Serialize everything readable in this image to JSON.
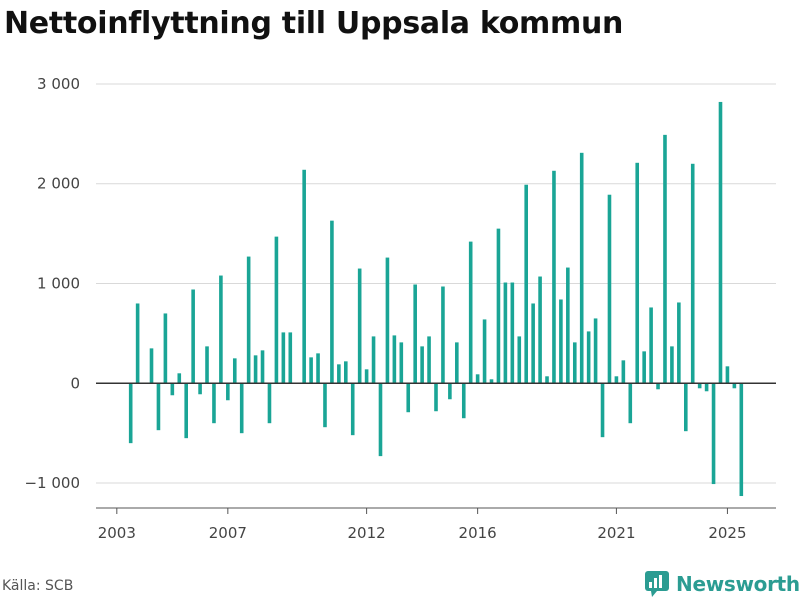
{
  "header": {
    "title": "Nettoinflyttning till Uppsala kommun"
  },
  "footer": {
    "source": "Källa: SCB",
    "brand": "Newsworthy"
  },
  "icons": {
    "brand_logo": "newsworthy-logo-icon"
  },
  "colors": {
    "bar": "#1aa596",
    "baseline": "#333333",
    "grid": "#d9d9d9",
    "brand": "#2b9c92"
  },
  "chart_data": {
    "type": "bar",
    "title": "Nettoinflyttning till Uppsala kommun",
    "xlabel": "",
    "ylabel": "",
    "ylim": [
      -1250,
      3100
    ],
    "xlim": [
      2002.25,
      2026.75
    ],
    "grid": true,
    "y_ticks": [
      {
        "value": -1000,
        "label": "−1 000"
      },
      {
        "value": 0,
        "label": "0"
      },
      {
        "value": 1000,
        "label": "1 000"
      },
      {
        "value": 2000,
        "label": "2 000"
      },
      {
        "value": 3000,
        "label": "3 000"
      }
    ],
    "x_ticks": [
      {
        "value": 2003.0,
        "label": "2003"
      },
      {
        "value": 2007.0,
        "label": "2007"
      },
      {
        "value": 2012.0,
        "label": "2012"
      },
      {
        "value": 2016.0,
        "label": "2016"
      },
      {
        "value": 2021.0,
        "label": "2021"
      },
      {
        "value": 2025.0,
        "label": "2025"
      }
    ],
    "x": [
      2003.5,
      2003.75,
      2004.0,
      2004.25,
      2004.5,
      2004.75,
      2005.0,
      2005.25,
      2005.5,
      2005.75,
      2006.0,
      2006.25,
      2006.5,
      2006.75,
      2007.0,
      2007.25,
      2007.5,
      2007.75,
      2008.0,
      2008.25,
      2008.5,
      2008.75,
      2009.0,
      2009.25,
      2009.5,
      2009.75,
      2010.0,
      2010.25,
      2010.5,
      2010.75,
      2011.0,
      2011.25,
      2011.5,
      2011.75,
      2012.0,
      2012.25,
      2012.5,
      2012.75,
      2013.0,
      2013.25,
      2013.5,
      2013.75,
      2014.0,
      2014.25,
      2014.5,
      2014.75,
      2015.0,
      2015.25,
      2015.5,
      2015.75,
      2016.0,
      2016.25,
      2016.5,
      2016.75,
      2017.0,
      2017.25,
      2017.5,
      2017.75,
      2018.0,
      2018.25,
      2018.5,
      2018.75,
      2019.0,
      2019.25,
      2019.5,
      2019.75,
      2020.0,
      2020.25,
      2020.5,
      2020.75,
      2021.0,
      2021.25,
      2021.5,
      2021.75,
      2022.0,
      2022.25,
      2022.5,
      2022.75,
      2023.0,
      2023.25,
      2023.5,
      2023.75,
      2024.0,
      2024.25,
      2024.5,
      2024.75,
      2025.0,
      2025.25,
      2025.5
    ],
    "values": [
      -600,
      800,
      0,
      350,
      -470,
      700,
      -120,
      100,
      -550,
      940,
      -110,
      370,
      -400,
      1080,
      -170,
      250,
      -500,
      1270,
      280,
      330,
      -400,
      1470,
      510,
      510,
      0,
      2140,
      260,
      300,
      -440,
      1630,
      190,
      220,
      -520,
      1150,
      140,
      470,
      -730,
      1260,
      480,
      410,
      -290,
      990,
      370,
      470,
      -280,
      970,
      -160,
      410,
      -350,
      1420,
      90,
      640,
      40,
      1550,
      1010,
      1010,
      470,
      1990,
      800,
      1070,
      70,
      2130,
      840,
      1160,
      410,
      2310,
      520,
      650,
      -540,
      1890,
      70,
      230,
      -400,
      2210,
      320,
      760,
      -60,
      2490,
      370,
      810,
      -480,
      2200,
      -50,
      -80,
      -1010,
      2820,
      170,
      -50,
      -1130
    ]
  }
}
